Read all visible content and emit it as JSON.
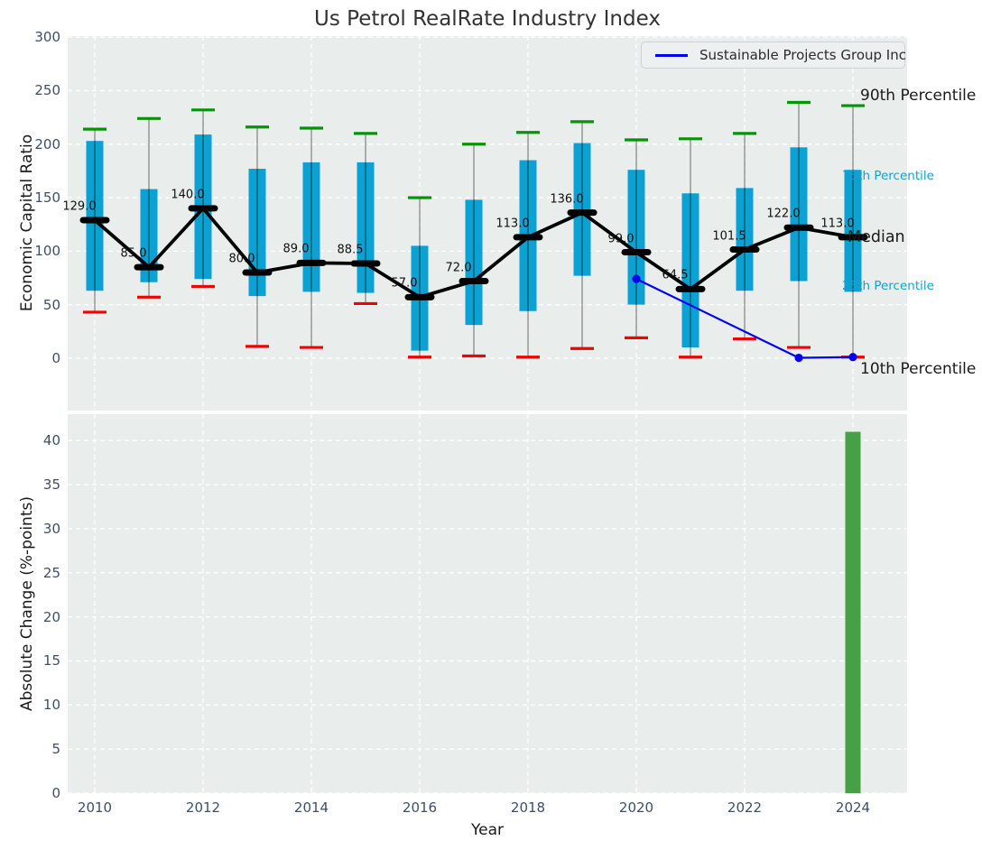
{
  "title": "Us Petrol RealRate Industry Index",
  "legend": {
    "label": "Sustainable Projects Group Inc"
  },
  "colors": {
    "axes_bg": "#e9edec",
    "grid": "#ffffff",
    "box": "#0ca1d3",
    "whisker": "#808080",
    "whisker_in_box": "#0c5a74",
    "p90_cap": "#079307",
    "p10_cap": "#ea0606",
    "median": "#000000",
    "company": "#0202ef",
    "bar": "#46a046",
    "tick": "#3e4f63",
    "label_dark": "#1a1a1a",
    "cyan_label": "#1b9fcd"
  },
  "chart_data": [
    {
      "type": "boxplot+line",
      "title": "Us Petrol RealRate Industry Index",
      "ylabel": "Economic Capital Ratio",
      "ylim": [
        -49,
        301
      ],
      "yticks": [
        0,
        50,
        100,
        150,
        200,
        250,
        300
      ],
      "grid": "on",
      "years": [
        2010,
        2011,
        2012,
        2013,
        2014,
        2015,
        2016,
        2017,
        2018,
        2019,
        2020,
        2021,
        2022,
        2023,
        2024
      ],
      "xticks": [
        2010,
        2012,
        2014,
        2016,
        2018,
        2020,
        2022,
        2024
      ],
      "series": [
        {
          "name": "90th Percentile",
          "values": [
            214,
            224,
            232,
            216,
            215,
            210,
            150,
            200,
            211,
            221,
            204,
            205,
            210,
            239,
            236
          ]
        },
        {
          "name": "75th Percentile",
          "values": [
            203,
            158,
            209,
            177,
            183,
            183,
            105,
            148,
            185,
            201,
            176,
            154,
            159,
            197,
            176
          ]
        },
        {
          "name": "Median",
          "values": [
            129,
            85,
            140,
            80,
            89,
            88.5,
            57,
            72,
            113,
            136,
            99,
            64.5,
            101.5,
            122,
            113
          ]
        },
        {
          "name": "25th Percentile",
          "values": [
            63,
            71,
            74,
            58,
            62,
            61,
            7,
            31,
            44,
            77,
            50,
            10,
            63,
            72,
            62
          ]
        },
        {
          "name": "10th Percentile",
          "values": [
            43,
            57,
            67,
            11,
            10,
            51,
            1,
            2,
            1,
            9,
            19,
            1,
            18,
            10,
            1
          ]
        }
      ],
      "median_labels": [
        "129.0",
        "85.0",
        "140.0",
        "80.0",
        "89.0",
        "88.5",
        "57.0",
        "72.0",
        "113.0",
        "136.0",
        "99.0",
        "64.5",
        "101.5",
        "122.0",
        "113.0"
      ],
      "company_series": {
        "name": "Sustainable Projects Group Inc",
        "x": [
          2020,
          2023,
          2024
        ],
        "values": [
          74,
          0.3,
          1.0
        ]
      },
      "right_labels": [
        {
          "text": "90th Percentile",
          "value": 245,
          "size": 17,
          "color": "dark",
          "dx": 8
        },
        {
          "text": "75th Percentile",
          "value": 170,
          "size": 13.5,
          "color": "cyan",
          "dx": -12
        },
        {
          "text": "Median",
          "value": 113,
          "size": 17.5,
          "color": "dark",
          "dx": -6
        },
        {
          "text": "25th Percentile",
          "value": 67,
          "size": 13.5,
          "color": "cyan",
          "dx": -12
        },
        {
          "text": "10th Percentile",
          "value": -10,
          "size": 17,
          "color": "dark",
          "dx": 8
        }
      ],
      "legend_entries": [
        "Sustainable Projects Group Inc"
      ],
      "legend_position": "upper right"
    },
    {
      "type": "bar",
      "ylabel": "Absolute Change (%-points)",
      "xlabel": "Year",
      "ylim": [
        0,
        43
      ],
      "yticks": [
        0,
        5,
        10,
        15,
        20,
        25,
        30,
        35,
        40
      ],
      "grid": "on",
      "xticks": [
        2010,
        2012,
        2014,
        2016,
        2018,
        2020,
        2022,
        2024
      ],
      "x": [
        2024
      ],
      "values": [
        41
      ]
    }
  ]
}
